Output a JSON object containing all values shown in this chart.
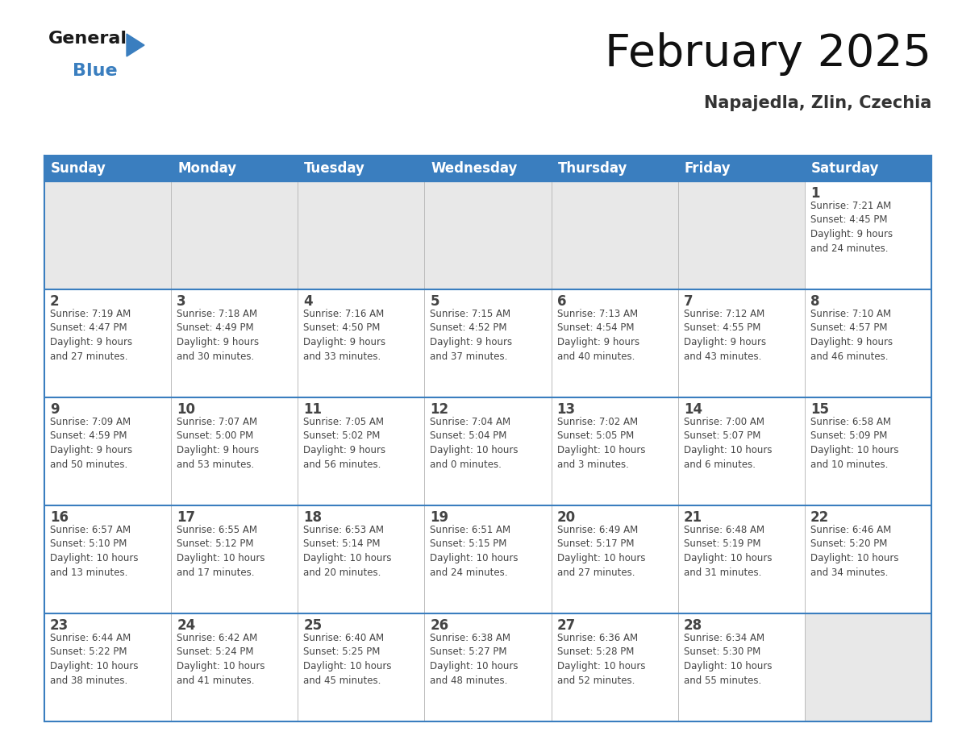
{
  "title": "February 2025",
  "subtitle": "Napajedla, Zlin, Czechia",
  "header_color": "#3a7ebf",
  "header_text_color": "#ffffff",
  "cell_bg_color": "#ffffff",
  "alt_cell_bg_color": "#e8e8e8",
  "border_color": "#3a7ebf",
  "text_color": "#444444",
  "days_of_week": [
    "Sunday",
    "Monday",
    "Tuesday",
    "Wednesday",
    "Thursday",
    "Friday",
    "Saturday"
  ],
  "calendar_data": [
    [
      {
        "day": null,
        "info": ""
      },
      {
        "day": null,
        "info": ""
      },
      {
        "day": null,
        "info": ""
      },
      {
        "day": null,
        "info": ""
      },
      {
        "day": null,
        "info": ""
      },
      {
        "day": null,
        "info": ""
      },
      {
        "day": 1,
        "info": "Sunrise: 7:21 AM\nSunset: 4:45 PM\nDaylight: 9 hours\nand 24 minutes."
      }
    ],
    [
      {
        "day": 2,
        "info": "Sunrise: 7:19 AM\nSunset: 4:47 PM\nDaylight: 9 hours\nand 27 minutes."
      },
      {
        "day": 3,
        "info": "Sunrise: 7:18 AM\nSunset: 4:49 PM\nDaylight: 9 hours\nand 30 minutes."
      },
      {
        "day": 4,
        "info": "Sunrise: 7:16 AM\nSunset: 4:50 PM\nDaylight: 9 hours\nand 33 minutes."
      },
      {
        "day": 5,
        "info": "Sunrise: 7:15 AM\nSunset: 4:52 PM\nDaylight: 9 hours\nand 37 minutes."
      },
      {
        "day": 6,
        "info": "Sunrise: 7:13 AM\nSunset: 4:54 PM\nDaylight: 9 hours\nand 40 minutes."
      },
      {
        "day": 7,
        "info": "Sunrise: 7:12 AM\nSunset: 4:55 PM\nDaylight: 9 hours\nand 43 minutes."
      },
      {
        "day": 8,
        "info": "Sunrise: 7:10 AM\nSunset: 4:57 PM\nDaylight: 9 hours\nand 46 minutes."
      }
    ],
    [
      {
        "day": 9,
        "info": "Sunrise: 7:09 AM\nSunset: 4:59 PM\nDaylight: 9 hours\nand 50 minutes."
      },
      {
        "day": 10,
        "info": "Sunrise: 7:07 AM\nSunset: 5:00 PM\nDaylight: 9 hours\nand 53 minutes."
      },
      {
        "day": 11,
        "info": "Sunrise: 7:05 AM\nSunset: 5:02 PM\nDaylight: 9 hours\nand 56 minutes."
      },
      {
        "day": 12,
        "info": "Sunrise: 7:04 AM\nSunset: 5:04 PM\nDaylight: 10 hours\nand 0 minutes."
      },
      {
        "day": 13,
        "info": "Sunrise: 7:02 AM\nSunset: 5:05 PM\nDaylight: 10 hours\nand 3 minutes."
      },
      {
        "day": 14,
        "info": "Sunrise: 7:00 AM\nSunset: 5:07 PM\nDaylight: 10 hours\nand 6 minutes."
      },
      {
        "day": 15,
        "info": "Sunrise: 6:58 AM\nSunset: 5:09 PM\nDaylight: 10 hours\nand 10 minutes."
      }
    ],
    [
      {
        "day": 16,
        "info": "Sunrise: 6:57 AM\nSunset: 5:10 PM\nDaylight: 10 hours\nand 13 minutes."
      },
      {
        "day": 17,
        "info": "Sunrise: 6:55 AM\nSunset: 5:12 PM\nDaylight: 10 hours\nand 17 minutes."
      },
      {
        "day": 18,
        "info": "Sunrise: 6:53 AM\nSunset: 5:14 PM\nDaylight: 10 hours\nand 20 minutes."
      },
      {
        "day": 19,
        "info": "Sunrise: 6:51 AM\nSunset: 5:15 PM\nDaylight: 10 hours\nand 24 minutes."
      },
      {
        "day": 20,
        "info": "Sunrise: 6:49 AM\nSunset: 5:17 PM\nDaylight: 10 hours\nand 27 minutes."
      },
      {
        "day": 21,
        "info": "Sunrise: 6:48 AM\nSunset: 5:19 PM\nDaylight: 10 hours\nand 31 minutes."
      },
      {
        "day": 22,
        "info": "Sunrise: 6:46 AM\nSunset: 5:20 PM\nDaylight: 10 hours\nand 34 minutes."
      }
    ],
    [
      {
        "day": 23,
        "info": "Sunrise: 6:44 AM\nSunset: 5:22 PM\nDaylight: 10 hours\nand 38 minutes."
      },
      {
        "day": 24,
        "info": "Sunrise: 6:42 AM\nSunset: 5:24 PM\nDaylight: 10 hours\nand 41 minutes."
      },
      {
        "day": 25,
        "info": "Sunrise: 6:40 AM\nSunset: 5:25 PM\nDaylight: 10 hours\nand 45 minutes."
      },
      {
        "day": 26,
        "info": "Sunrise: 6:38 AM\nSunset: 5:27 PM\nDaylight: 10 hours\nand 48 minutes."
      },
      {
        "day": 27,
        "info": "Sunrise: 6:36 AM\nSunset: 5:28 PM\nDaylight: 10 hours\nand 52 minutes."
      },
      {
        "day": 28,
        "info": "Sunrise: 6:34 AM\nSunset: 5:30 PM\nDaylight: 10 hours\nand 55 minutes."
      },
      {
        "day": null,
        "info": ""
      }
    ]
  ],
  "logo_text_general": "General",
  "logo_text_blue": "Blue",
  "logo_color_general": "#1a1a1a",
  "logo_color_blue": "#3a7ebf",
  "logo_triangle_color": "#3a7ebf",
  "title_fontsize": 40,
  "subtitle_fontsize": 15,
  "header_fontsize": 12,
  "day_num_fontsize": 12,
  "info_fontsize": 8.5
}
